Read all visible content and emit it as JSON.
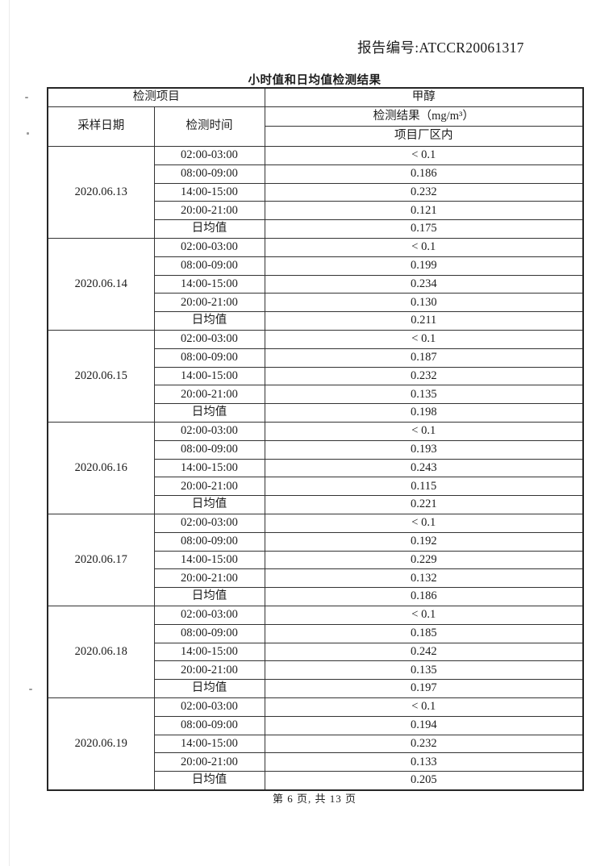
{
  "header": {
    "report_number": "报告编号:ATCCR20061317"
  },
  "table": {
    "title": "小时值和日均值检测结果",
    "header": {
      "item_label": "检测项目",
      "item_value": "甲醇",
      "date_col": "采样日期",
      "time_col": "检测时间",
      "result_label": "检测结果（mg/m³）",
      "location_label": "项目厂区内"
    },
    "groups": [
      {
        "date": "2020.06.13",
        "rows": [
          {
            "time": "02:00-03:00",
            "value": "< 0.1"
          },
          {
            "time": "08:00-09:00",
            "value": "0.186"
          },
          {
            "time": "14:00-15:00",
            "value": "0.232"
          },
          {
            "time": "20:00-21:00",
            "value": "0.121"
          },
          {
            "time": "日均值",
            "value": "0.175"
          }
        ]
      },
      {
        "date": "2020.06.14",
        "rows": [
          {
            "time": "02:00-03:00",
            "value": "< 0.1"
          },
          {
            "time": "08:00-09:00",
            "value": "0.199"
          },
          {
            "time": "14:00-15:00",
            "value": "0.234"
          },
          {
            "time": "20:00-21:00",
            "value": "0.130"
          },
          {
            "time": "日均值",
            "value": "0.211"
          }
        ]
      },
      {
        "date": "2020.06.15",
        "rows": [
          {
            "time": "02:00-03:00",
            "value": "< 0.1"
          },
          {
            "time": "08:00-09:00",
            "value": "0.187"
          },
          {
            "time": "14:00-15:00",
            "value": "0.232"
          },
          {
            "time": "20:00-21:00",
            "value": "0.135"
          },
          {
            "time": "日均值",
            "value": "0.198"
          }
        ]
      },
      {
        "date": "2020.06.16",
        "rows": [
          {
            "time": "02:00-03:00",
            "value": "< 0.1"
          },
          {
            "time": "08:00-09:00",
            "value": "0.193"
          },
          {
            "time": "14:00-15:00",
            "value": "0.243"
          },
          {
            "time": "20:00-21:00",
            "value": "0.115"
          },
          {
            "time": "日均值",
            "value": "0.221"
          }
        ]
      },
      {
        "date": "2020.06.17",
        "rows": [
          {
            "time": "02:00-03:00",
            "value": "< 0.1"
          },
          {
            "time": "08:00-09:00",
            "value": "0.192"
          },
          {
            "time": "14:00-15:00",
            "value": "0.229"
          },
          {
            "time": "20:00-21:00",
            "value": "0.132"
          },
          {
            "time": "日均值",
            "value": "0.186"
          }
        ]
      },
      {
        "date": "2020.06.18",
        "rows": [
          {
            "time": "02:00-03:00",
            "value": "< 0.1"
          },
          {
            "time": "08:00-09:00",
            "value": "0.185"
          },
          {
            "time": "14:00-15:00",
            "value": "0.242"
          },
          {
            "time": "20:00-21:00",
            "value": "0.135"
          },
          {
            "time": "日均值",
            "value": "0.197"
          }
        ]
      },
      {
        "date": "2020.06.19",
        "rows": [
          {
            "time": "02:00-03:00",
            "value": "< 0.1"
          },
          {
            "time": "08:00-09:00",
            "value": "0.194"
          },
          {
            "time": "14:00-15:00",
            "value": "0.232"
          },
          {
            "time": "20:00-21:00",
            "value": "0.133"
          },
          {
            "time": "日均值",
            "value": "0.205"
          }
        ]
      }
    ]
  },
  "footer": {
    "page_indicator": "第 6 页, 共 13 页"
  }
}
